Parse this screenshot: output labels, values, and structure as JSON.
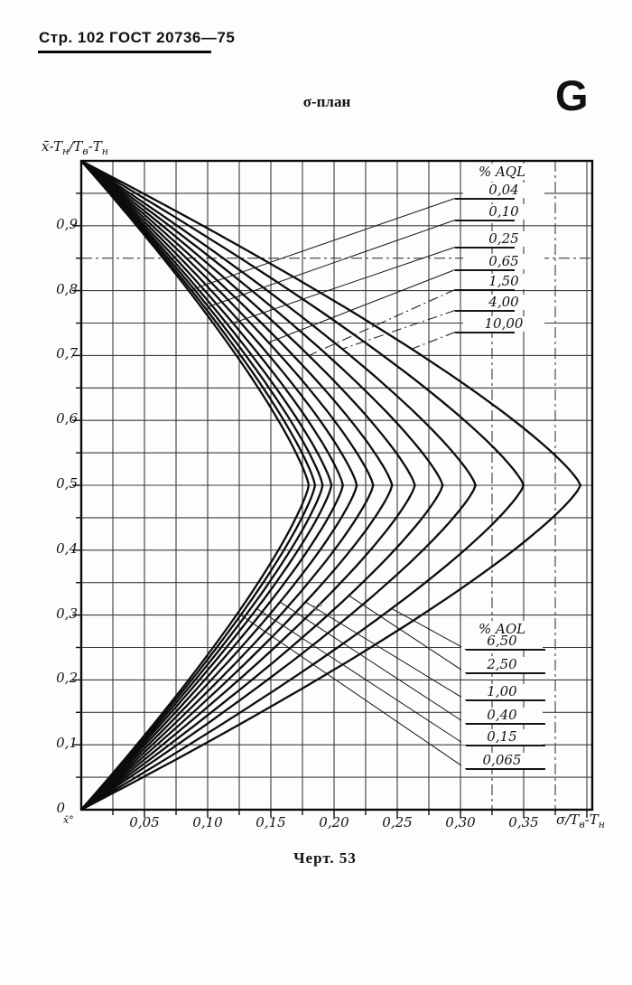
{
  "page": {
    "header": "Стр. 102 ГОСТ 20736—75",
    "section_letter": "G",
    "chart_title": "σ-план",
    "caption": "Черт. 53",
    "origin_submark": "x̄°",
    "stray_mark": "x°"
  },
  "chart_data": {
    "type": "line",
    "title": "σ-план",
    "description": "Family of 13 operating curves of the sigma sampling plan (ГОСТ 20736—75, Черт. 53). Each AQL curve starts at (σ=0, ȳ=1), bulges to its maximum σ at ȳ=0.5 and returns to (σ=0, ȳ=0).",
    "x_axis": {
      "label": "σ/Tв-Tн",
      "label_parts": {
        "p1": "σ/T",
        "s1": "в",
        "p2": "-T",
        "s2": "н"
      },
      "range": [
        0,
        0.405
      ],
      "grid_step": 0.025,
      "tick_labels": [
        "0,05",
        "0,10",
        "0,15",
        "0,20",
        "0,25",
        "0,30",
        "0,35"
      ],
      "tick_values": [
        0.05,
        0.1,
        0.15,
        0.2,
        0.25,
        0.3,
        0.35
      ]
    },
    "y_axis": {
      "label": "x̄-Tн/Tв-Tн",
      "label_parts": {
        "p1": "x̄-T",
        "s1": "н",
        "p2": "/T",
        "s2": "в",
        "p3": "-T",
        "s3": "н"
      },
      "range": [
        0,
        1.0
      ],
      "grid_step": 0.05,
      "tick_labels": [
        "0,9",
        "0,8",
        "0,7",
        "0,6",
        "0,5",
        "0,4",
        "0,3",
        "0,2",
        "0,1",
        "0"
      ],
      "tick_values": [
        0.9,
        0.8,
        0.7,
        0.6,
        0.5,
        0.4,
        0.3,
        0.2,
        0.1,
        0
      ]
    },
    "curve_shape": {
      "start_point": [
        0,
        1
      ],
      "end_point": [
        0,
        0
      ],
      "vertex_y": 0.5,
      "exponent": 1.25,
      "note": "x(y) = sigma_max * (1 - |2y-1|^exponent)"
    },
    "series": [
      {
        "aql_label": "0,04",
        "aql_percent": 0.04,
        "sigma_max": 0.18
      },
      {
        "aql_label": "0,065",
        "aql_percent": 0.065,
        "sigma_max": 0.185
      },
      {
        "aql_label": "0,10",
        "aql_percent": 0.1,
        "sigma_max": 0.191
      },
      {
        "aql_label": "0,15",
        "aql_percent": 0.15,
        "sigma_max": 0.198
      },
      {
        "aql_label": "0,25",
        "aql_percent": 0.25,
        "sigma_max": 0.207
      },
      {
        "aql_label": "0,40",
        "aql_percent": 0.4,
        "sigma_max": 0.218
      },
      {
        "aql_label": "0,65",
        "aql_percent": 0.65,
        "sigma_max": 0.231
      },
      {
        "aql_label": "1,00",
        "aql_percent": 1.0,
        "sigma_max": 0.246
      },
      {
        "aql_label": "1,50",
        "aql_percent": 1.5,
        "sigma_max": 0.264
      },
      {
        "aql_label": "2,50",
        "aql_percent": 2.5,
        "sigma_max": 0.286
      },
      {
        "aql_label": "4,00",
        "aql_percent": 4.0,
        "sigma_max": 0.312
      },
      {
        "aql_label": "6,50",
        "aql_percent": 6.5,
        "sigma_max": 0.35
      },
      {
        "aql_label": "10,00",
        "aql_percent": 10.0,
        "sigma_max": 0.395
      }
    ],
    "legend_top": {
      "title": "% AQL",
      "items": [
        {
          "label": "0,04",
          "curve": 0
        },
        {
          "label": "0,10",
          "curve": 2
        },
        {
          "label": "0,25",
          "curve": 4
        },
        {
          "label": "0,65",
          "curve": 6
        },
        {
          "label": "1,50",
          "curve": 8
        },
        {
          "label": "4,00",
          "curve": 10
        },
        {
          "label": "10,00",
          "curve": 12
        }
      ]
    },
    "legend_bottom": {
      "title": "% AQL",
      "items": [
        {
          "label": "6,50",
          "curve": 11
        },
        {
          "label": "2,50",
          "curve": 9
        },
        {
          "label": "1,00",
          "curve": 7
        },
        {
          "label": "0,40",
          "curve": 5
        },
        {
          "label": "0,15",
          "curve": 3
        },
        {
          "label": "0,065",
          "curve": 1
        }
      ]
    }
  }
}
